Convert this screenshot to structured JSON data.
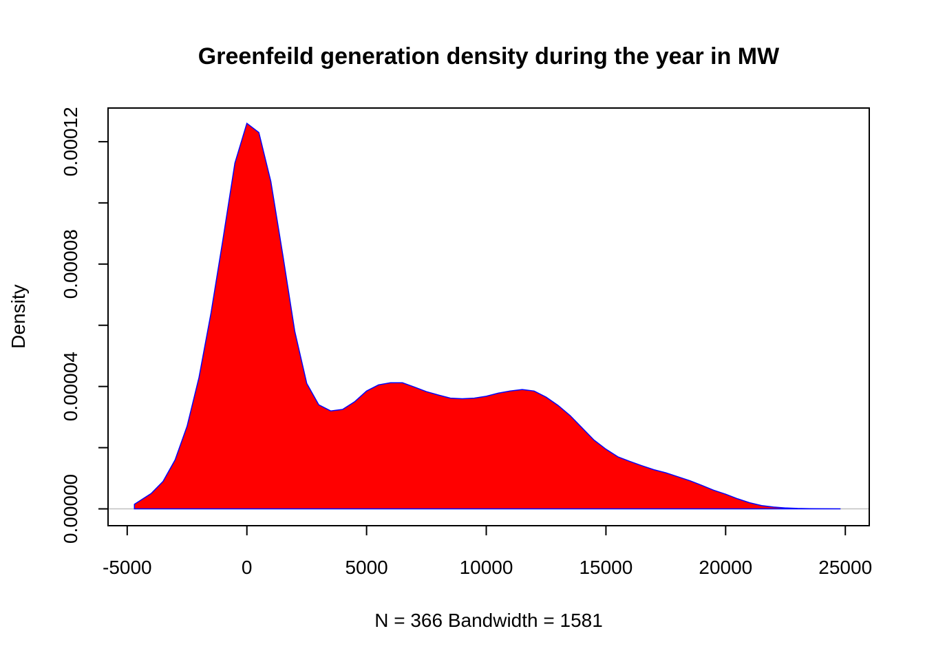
{
  "chart_data": {
    "type": "area",
    "title": "Greenfeild generation density during the year in MW",
    "xlabel": "N = 366   Bandwidth = 1581",
    "ylabel": "Density",
    "xlim": [
      -5800,
      26000
    ],
    "ylim": [
      -5.5e-06,
      0.000131
    ],
    "x_ticks": [
      -5000,
      0,
      5000,
      10000,
      15000,
      20000,
      25000
    ],
    "x_tick_labels": [
      "-5000",
      "0",
      "5000",
      "10000",
      "15000",
      "20000",
      "25000"
    ],
    "y_ticks": [
      0,
      2e-05,
      4e-05,
      6e-05,
      8e-05,
      0.0001,
      0.00012
    ],
    "y_tick_labels": [
      "0.00000",
      "",
      "0.00004",
      "",
      "0.00008",
      "",
      "0.00012"
    ],
    "grid": false,
    "fill_color": "#ff0000",
    "line_color": "#0000ff",
    "baseline_color": "#c0c0c0",
    "series": [
      {
        "x": [
          -4700,
          -4000,
          -3500,
          -3000,
          -2500,
          -2000,
          -1500,
          -1000,
          -500,
          0,
          500,
          1000,
          1500,
          2000,
          2500,
          3000,
          3500,
          4000,
          4500,
          5000,
          5500,
          6000,
          6500,
          7000,
          7500,
          8000,
          8500,
          9000,
          9500,
          10000,
          10500,
          11000,
          11500,
          12000,
          12500,
          13000,
          13500,
          14000,
          14500,
          15000,
          15500,
          16000,
          16500,
          17000,
          17500,
          18000,
          18500,
          19000,
          19500,
          20000,
          20500,
          21000,
          21500,
          22000,
          22500,
          23000,
          23500,
          24000,
          24800
        ],
        "y": [
          1.5e-06,
          5e-06,
          9e-06,
          1.6e-05,
          2.7e-05,
          4.3e-05,
          6.4e-05,
          8.8e-05,
          0.000113,
          0.000126,
          0.000123,
          0.000107,
          8.3e-05,
          5.8e-05,
          4.1e-05,
          3.4e-05,
          3.2e-05,
          3.25e-05,
          3.5e-05,
          3.85e-05,
          4.05e-05,
          4.12e-05,
          4.12e-05,
          3.98e-05,
          3.83e-05,
          3.72e-05,
          3.62e-05,
          3.6e-05,
          3.62e-05,
          3.68e-05,
          3.78e-05,
          3.85e-05,
          3.9e-05,
          3.85e-05,
          3.65e-05,
          3.38e-05,
          3.05e-05,
          2.65e-05,
          2.25e-05,
          1.95e-05,
          1.7e-05,
          1.55e-05,
          1.41e-05,
          1.28e-05,
          1.18e-05,
          1.05e-05,
          9.2e-06,
          7.7e-06,
          6.1e-06,
          4.8e-06,
          3.3e-06,
          2e-06,
          1.1e-06,
          6e-07,
          3e-07,
          1.5e-07,
          7e-08,
          3e-08,
          0.0
        ]
      }
    ]
  }
}
